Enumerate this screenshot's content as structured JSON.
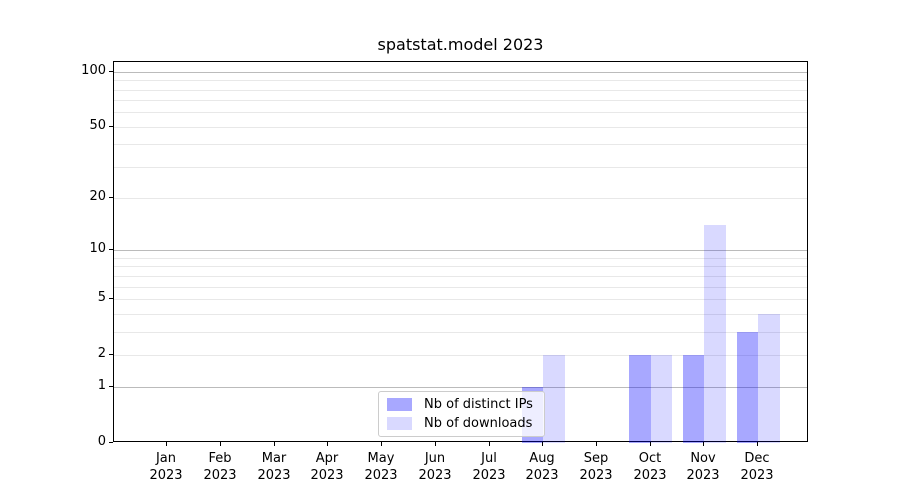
{
  "title": "spatstat.model 2023",
  "chart_data": {
    "type": "bar",
    "title": "spatstat.model 2023",
    "categories": [
      "Jan 2023",
      "Feb 2023",
      "Mar 2023",
      "Apr 2023",
      "May 2023",
      "Jun 2023",
      "Jul 2023",
      "Aug 2023",
      "Sep 2023",
      "Oct 2023",
      "Nov 2023",
      "Dec 2023"
    ],
    "category_month_labels": [
      "Jan",
      "Feb",
      "Mar",
      "Apr",
      "May",
      "Jun",
      "Jul",
      "Aug",
      "Sep",
      "Oct",
      "Nov",
      "Dec"
    ],
    "category_year_label": "2023",
    "series": [
      {
        "name": "Nb of distinct IPs",
        "color": "rgba(0,0,255,0.34)",
        "values": [
          0,
          0,
          0,
          0,
          0,
          0,
          0,
          1,
          0,
          2,
          2,
          3
        ]
      },
      {
        "name": "Nb of downloads",
        "color": "rgba(0,0,255,0.15)",
        "values": [
          0,
          0,
          0,
          0,
          0,
          0,
          0,
          2,
          0,
          2,
          14,
          4
        ]
      }
    ],
    "xlabel": "",
    "ylabel": "",
    "yscale": "log1p",
    "ylim": [
      0,
      113
    ],
    "y_tick_values": [
      0,
      1,
      2,
      5,
      10,
      20,
      50,
      100
    ],
    "y_major_gridlines": [
      1,
      10,
      100
    ],
    "y_minor_gridlines": [
      2,
      3,
      4,
      5,
      6,
      7,
      8,
      9,
      20,
      30,
      40,
      50,
      60,
      70,
      80,
      90
    ],
    "grid": true,
    "legend_position": "lower center",
    "legend_labels": [
      "Nb of distinct IPs",
      "Nb of downloads"
    ]
  },
  "colors": {
    "background": "#ffffff",
    "bar_distinct_ips": "rgba(0,0,255,0.34)",
    "bar_downloads": "rgba(0,0,255,0.15)",
    "grid_major": "#bbbbbb",
    "grid_minor": "#e8e8e8",
    "axis_spine": "#000000",
    "text": "#000000",
    "legend_border": "#cccccc"
  }
}
